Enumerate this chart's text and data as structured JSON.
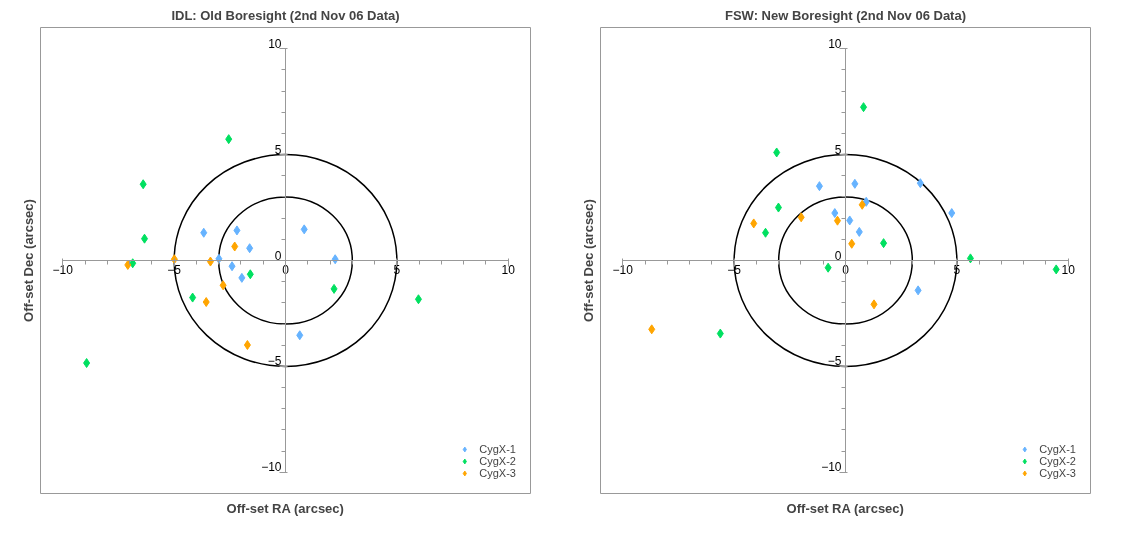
{
  "chart_data": [
    {
      "type": "scatter",
      "title": "IDL: Old Boresight (2nd Nov 06 Data)",
      "xlabel": "Off-set RA (arcsec)",
      "ylabel": "Off-set Dec (arcsec)",
      "xlim": [
        -10,
        10
      ],
      "ylim": [
        -10,
        10
      ],
      "xticks": [
        -10,
        -5,
        0,
        5,
        10
      ],
      "yticks": [
        -10,
        -5,
        0,
        5,
        10
      ],
      "grid": false,
      "legend": "bottom right",
      "marker": "diamond",
      "series": [
        {
          "name": "CygX-1",
          "color": "#66b3ff",
          "x": [
            -3.67,
            -2.18,
            0.84,
            -1.61,
            -2.99,
            2.23,
            -2.4,
            -1.96,
            0.64
          ],
          "values": [
            1.31,
            1.42,
            1.47,
            0.58,
            0.08,
            0.06,
            -0.27,
            -0.82,
            -3.53
          ]
        },
        {
          "name": "CygX-2",
          "color": "#00e060",
          "x": [
            -2.55,
            -6.39,
            -6.33,
            -6.86,
            -1.58,
            -4.17,
            2.18,
            5.97,
            -8.93
          ],
          "values": [
            5.73,
            3.6,
            1.03,
            -0.13,
            -0.65,
            -1.75,
            -1.34,
            -1.83,
            -4.84
          ]
        },
        {
          "name": "CygX-3",
          "color": "#ffa500",
          "x": [
            -7.08,
            -4.99,
            -3.37,
            -2.28,
            -2.8,
            -3.56,
            -1.71
          ],
          "values": [
            -0.21,
            0.06,
            -0.05,
            0.66,
            -1.17,
            -1.96,
            -3.99
          ]
        }
      ]
    },
    {
      "type": "scatter",
      "title": "FSW: New Boresight (2nd Nov 06 Data)",
      "xlabel": "Off-set RA (arcsec)",
      "ylabel": "Off-set Dec (arcsec)",
      "xlim": [
        -10,
        10
      ],
      "ylim": [
        -10,
        10
      ],
      "xticks": [
        -10,
        -5,
        0,
        5,
        10
      ],
      "yticks": [
        -10,
        -5,
        0,
        5,
        10
      ],
      "grid": false,
      "legend": "bottom right",
      "marker": "diamond",
      "series": [
        {
          "name": "CygX-1",
          "color": "#66b3ff",
          "x": [
            -1.17,
            0.42,
            3.36,
            0.93,
            -0.48,
            4.77,
            0.19,
            0.62,
            3.26
          ],
          "values": [
            3.51,
            3.62,
            3.65,
            2.77,
            2.24,
            2.24,
            1.89,
            1.35,
            -1.41
          ]
        },
        {
          "name": "CygX-2",
          "color": "#00e060",
          "x": [
            0.81,
            -3.09,
            -3.01,
            -3.59,
            1.71,
            -0.78,
            5.61,
            -5.62,
            9.46
          ],
          "values": [
            7.24,
            5.1,
            2.5,
            1.31,
            0.82,
            -0.34,
            0.1,
            -3.45,
            -0.42
          ]
        },
        {
          "name": "CygX-3",
          "color": "#ffa500",
          "x": [
            -8.7,
            -4.12,
            -1.99,
            -0.36,
            0.75,
            0.28,
            1.28
          ],
          "values": [
            -3.25,
            1.75,
            2.04,
            1.88,
            2.63,
            0.79,
            -2.07
          ]
        }
      ]
    }
  ]
}
